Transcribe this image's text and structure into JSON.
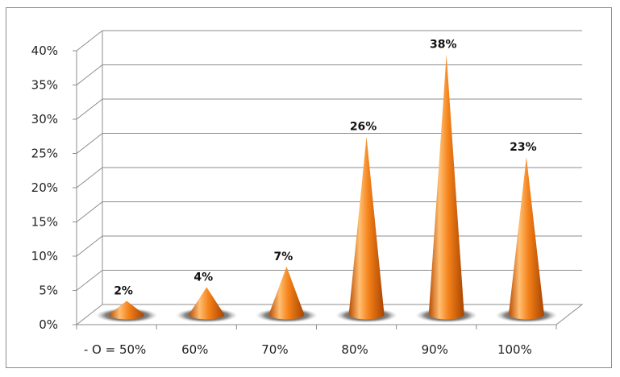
{
  "chart_data": {
    "type": "bar",
    "style": "3d-cone",
    "categories": [
      "- O = 50%",
      "60%",
      "70%",
      "80%",
      "90%",
      "100%"
    ],
    "values": [
      2,
      4,
      7,
      26,
      38,
      23
    ],
    "data_labels": [
      "2%",
      "4%",
      "7%",
      "26%",
      "38%",
      "23%"
    ],
    "ylim": [
      0,
      40
    ],
    "y_ticks": [
      "0%",
      "5%",
      "10%",
      "15%",
      "20%",
      "25%",
      "30%",
      "35%",
      "40%"
    ],
    "grid": true,
    "legend": "none",
    "title": "",
    "xlabel": "",
    "ylabel": "",
    "colors": {
      "cone_light": "#ffc27a",
      "cone_mid": "#f07a12",
      "cone_dark": "#a84400",
      "grid": "#8c8c8c"
    }
  }
}
